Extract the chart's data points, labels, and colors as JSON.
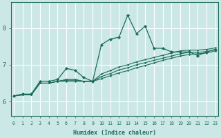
{
  "xlabel": "Humidex (Indice chaleur)",
  "background_color": "#cce8e6",
  "grid_color": "#ffffff",
  "line_color": "#1a6b5a",
  "x_ticks": [
    0,
    1,
    2,
    3,
    4,
    5,
    6,
    7,
    8,
    9,
    10,
    11,
    12,
    13,
    14,
    15,
    16,
    17,
    18,
    19,
    20,
    21,
    22,
    23
  ],
  "y_ticks": [
    6,
    7,
    8
  ],
  "ylim": [
    5.6,
    8.7
  ],
  "xlim": [
    -0.3,
    23.3
  ],
  "series": [
    [
      6.15,
      6.2,
      6.2,
      6.55,
      6.55,
      6.6,
      6.9,
      6.85,
      6.65,
      6.55,
      7.55,
      7.7,
      7.75,
      8.35,
      7.85,
      8.05,
      7.45,
      7.45,
      7.35,
      7.35,
      7.35,
      7.25,
      7.35,
      7.42
    ],
    [
      6.15,
      6.2,
      6.2,
      6.5,
      6.5,
      6.55,
      6.55,
      6.55,
      6.55,
      6.55,
      6.62,
      6.7,
      6.78,
      6.84,
      6.92,
      6.98,
      7.05,
      7.12,
      7.18,
      7.24,
      7.28,
      7.3,
      7.32,
      7.38
    ],
    [
      6.15,
      6.18,
      6.18,
      6.5,
      6.5,
      6.55,
      6.58,
      6.58,
      6.55,
      6.55,
      6.68,
      6.76,
      6.86,
      6.92,
      7.0,
      7.06,
      7.12,
      7.18,
      7.24,
      7.3,
      7.34,
      7.34,
      7.36,
      7.42
    ],
    [
      6.15,
      6.18,
      6.18,
      6.5,
      6.5,
      6.55,
      6.6,
      6.6,
      6.55,
      6.55,
      6.75,
      6.84,
      6.94,
      7.0,
      7.08,
      7.14,
      7.2,
      7.26,
      7.32,
      7.38,
      7.4,
      7.4,
      7.42,
      7.46
    ]
  ]
}
